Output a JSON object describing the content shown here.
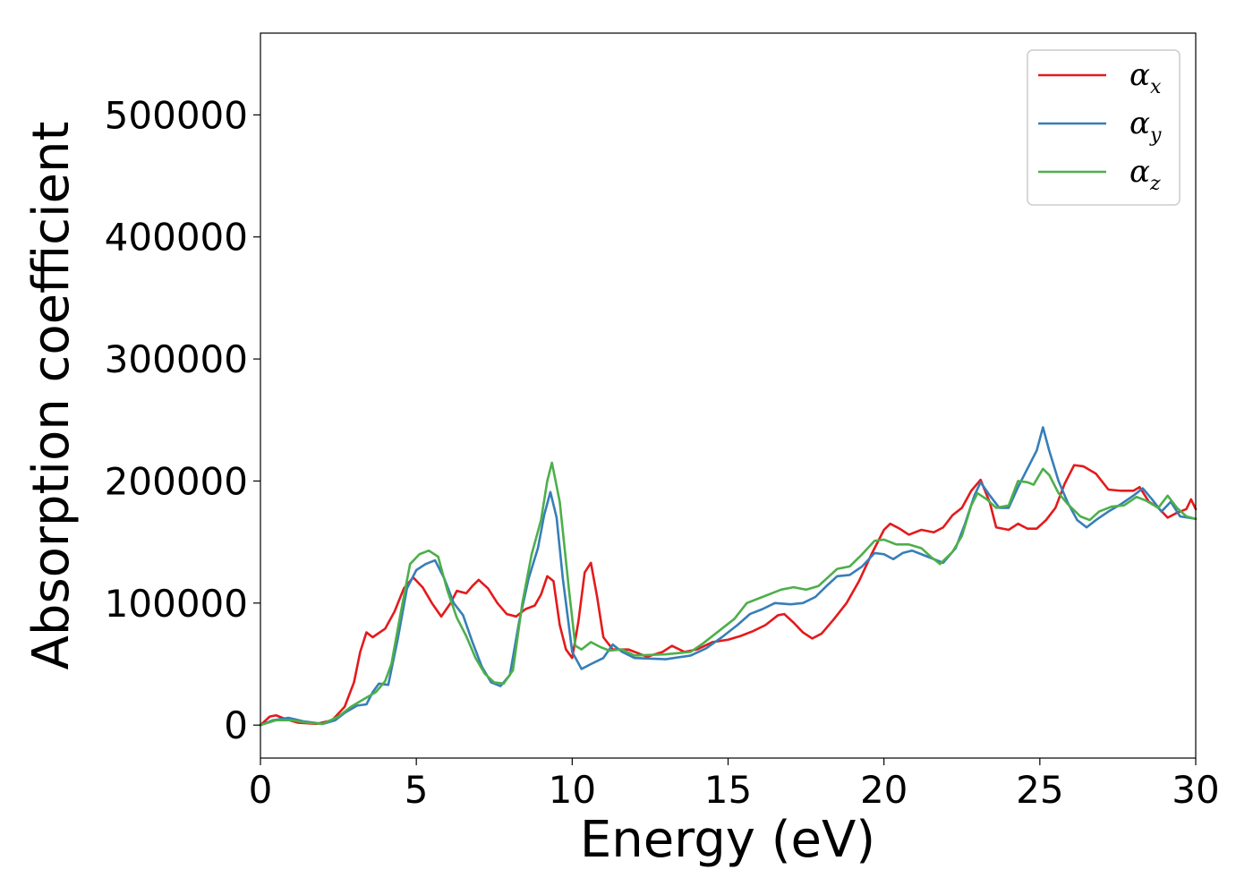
{
  "chart_data": {
    "type": "line",
    "xlabel": "Energy (eV)",
    "ylabel": "Absorption coefficient",
    "xlim": [
      0,
      30
    ],
    "ylim": [
      -27000,
      567000
    ],
    "x_ticks": [
      "0",
      "5",
      "10",
      "15",
      "20",
      "25",
      "30"
    ],
    "y_ticks": [
      "0",
      "100000",
      "200000",
      "300000",
      "400000",
      "500000"
    ],
    "grid": false,
    "legend_position": "top-right",
    "series": [
      {
        "name": "α_x",
        "label_main": "α",
        "label_sub": "x",
        "color": "#e41a1c",
        "points": [
          [
            0,
            0
          ],
          [
            0.3,
            7000
          ],
          [
            0.5,
            8000
          ],
          [
            0.8,
            5000
          ],
          [
            1.2,
            2000
          ],
          [
            1.8,
            1000
          ],
          [
            2.3,
            4000
          ],
          [
            2.7,
            15000
          ],
          [
            3.0,
            35000
          ],
          [
            3.2,
            60000
          ],
          [
            3.4,
            76000
          ],
          [
            3.6,
            72000
          ],
          [
            4.0,
            79000
          ],
          [
            4.3,
            93000
          ],
          [
            4.6,
            112000
          ],
          [
            4.9,
            121000
          ],
          [
            5.2,
            113000
          ],
          [
            5.5,
            100000
          ],
          [
            5.8,
            89000
          ],
          [
            6.1,
            100000
          ],
          [
            6.3,
            110000
          ],
          [
            6.6,
            108000
          ],
          [
            6.8,
            114000
          ],
          [
            7.0,
            119000
          ],
          [
            7.3,
            112000
          ],
          [
            7.6,
            100000
          ],
          [
            7.9,
            91000
          ],
          [
            8.2,
            89000
          ],
          [
            8.5,
            95000
          ],
          [
            8.8,
            98000
          ],
          [
            9.0,
            107000
          ],
          [
            9.2,
            122000
          ],
          [
            9.4,
            118000
          ],
          [
            9.6,
            82000
          ],
          [
            9.8,
            62000
          ],
          [
            10.0,
            55000
          ],
          [
            10.2,
            85000
          ],
          [
            10.4,
            125000
          ],
          [
            10.6,
            133000
          ],
          [
            10.8,
            105000
          ],
          [
            11.0,
            72000
          ],
          [
            11.3,
            62000
          ],
          [
            11.8,
            62000
          ],
          [
            12.4,
            56000
          ],
          [
            12.9,
            60000
          ],
          [
            13.2,
            65000
          ],
          [
            13.6,
            60000
          ],
          [
            14.0,
            62000
          ],
          [
            14.5,
            68000
          ],
          [
            15.0,
            70000
          ],
          [
            15.4,
            73000
          ],
          [
            15.8,
            77000
          ],
          [
            16.2,
            82000
          ],
          [
            16.6,
            90000
          ],
          [
            16.8,
            91000
          ],
          [
            17.1,
            84000
          ],
          [
            17.4,
            76000
          ],
          [
            17.7,
            71000
          ],
          [
            18.0,
            75000
          ],
          [
            18.4,
            87000
          ],
          [
            18.8,
            100000
          ],
          [
            19.2,
            118000
          ],
          [
            19.6,
            140000
          ],
          [
            20.0,
            160000
          ],
          [
            20.2,
            165000
          ],
          [
            20.5,
            161000
          ],
          [
            20.8,
            156000
          ],
          [
            21.2,
            160000
          ],
          [
            21.6,
            158000
          ],
          [
            21.9,
            162000
          ],
          [
            22.2,
            172000
          ],
          [
            22.5,
            178000
          ],
          [
            22.8,
            192000
          ],
          [
            23.1,
            201000
          ],
          [
            23.4,
            182000
          ],
          [
            23.6,
            162000
          ],
          [
            24.0,
            160000
          ],
          [
            24.3,
            165000
          ],
          [
            24.6,
            161000
          ],
          [
            24.9,
            161000
          ],
          [
            25.2,
            168000
          ],
          [
            25.5,
            178000
          ],
          [
            25.8,
            198000
          ],
          [
            26.1,
            213000
          ],
          [
            26.4,
            212000
          ],
          [
            26.8,
            206000
          ],
          [
            27.2,
            193000
          ],
          [
            27.6,
            192000
          ],
          [
            28.0,
            192000
          ],
          [
            28.2,
            195000
          ],
          [
            28.5,
            183000
          ],
          [
            28.8,
            178000
          ],
          [
            29.1,
            170000
          ],
          [
            29.4,
            174000
          ],
          [
            29.7,
            177000
          ],
          [
            29.85,
            185000
          ],
          [
            30.0,
            177000
          ]
        ]
      },
      {
        "name": "α_y",
        "label_main": "α",
        "label_sub": "y",
        "color": "#377eb8",
        "points": [
          [
            0,
            0
          ],
          [
            0.4,
            4000
          ],
          [
            0.9,
            6000
          ],
          [
            1.4,
            3000
          ],
          [
            2.0,
            1000
          ],
          [
            2.4,
            4000
          ],
          [
            2.7,
            10000
          ],
          [
            3.1,
            16000
          ],
          [
            3.4,
            17000
          ],
          [
            3.6,
            27000
          ],
          [
            3.8,
            34000
          ],
          [
            4.1,
            33000
          ],
          [
            4.4,
            70000
          ],
          [
            4.7,
            112000
          ],
          [
            5.0,
            127000
          ],
          [
            5.3,
            132000
          ],
          [
            5.6,
            135000
          ],
          [
            5.9,
            120000
          ],
          [
            6.2,
            100000
          ],
          [
            6.5,
            90000
          ],
          [
            6.8,
            68000
          ],
          [
            7.1,
            48000
          ],
          [
            7.4,
            35000
          ],
          [
            7.7,
            32000
          ],
          [
            8.0,
            41000
          ],
          [
            8.3,
            85000
          ],
          [
            8.6,
            120000
          ],
          [
            8.9,
            145000
          ],
          [
            9.1,
            172000
          ],
          [
            9.3,
            191000
          ],
          [
            9.5,
            170000
          ],
          [
            9.7,
            120000
          ],
          [
            10.0,
            60000
          ],
          [
            10.3,
            46000
          ],
          [
            10.6,
            50000
          ],
          [
            11.0,
            55000
          ],
          [
            11.3,
            66000
          ],
          [
            11.6,
            60000
          ],
          [
            12.0,
            55000
          ],
          [
            13.0,
            54000
          ],
          [
            13.8,
            57000
          ],
          [
            14.3,
            63000
          ],
          [
            14.8,
            72000
          ],
          [
            15.3,
            82000
          ],
          [
            15.7,
            91000
          ],
          [
            16.1,
            95000
          ],
          [
            16.5,
            100000
          ],
          [
            17.0,
            99000
          ],
          [
            17.4,
            100000
          ],
          [
            17.8,
            105000
          ],
          [
            18.2,
            115000
          ],
          [
            18.5,
            122000
          ],
          [
            18.9,
            123000
          ],
          [
            19.3,
            130000
          ],
          [
            19.7,
            141000
          ],
          [
            20.0,
            140000
          ],
          [
            20.3,
            136000
          ],
          [
            20.6,
            141000
          ],
          [
            20.9,
            143000
          ],
          [
            21.2,
            140000
          ],
          [
            21.6,
            136000
          ],
          [
            21.9,
            133000
          ],
          [
            22.3,
            145000
          ],
          [
            22.6,
            165000
          ],
          [
            22.9,
            188000
          ],
          [
            23.1,
            199000
          ],
          [
            23.4,
            188000
          ],
          [
            23.7,
            178000
          ],
          [
            24.0,
            178000
          ],
          [
            24.3,
            195000
          ],
          [
            24.6,
            210000
          ],
          [
            24.9,
            225000
          ],
          [
            25.1,
            244000
          ],
          [
            25.3,
            225000
          ],
          [
            25.6,
            200000
          ],
          [
            25.9,
            182000
          ],
          [
            26.2,
            168000
          ],
          [
            26.5,
            162000
          ],
          [
            26.8,
            168000
          ],
          [
            27.2,
            175000
          ],
          [
            27.6,
            181000
          ],
          [
            28.0,
            188000
          ],
          [
            28.3,
            194000
          ],
          [
            28.6,
            185000
          ],
          [
            28.9,
            175000
          ],
          [
            29.2,
            183000
          ],
          [
            29.5,
            171000
          ],
          [
            30.0,
            169000
          ]
        ]
      },
      {
        "name": "α_z",
        "label_main": "α",
        "label_sub": "z",
        "color": "#4daf4a",
        "points": [
          [
            0,
            0
          ],
          [
            0.5,
            4000
          ],
          [
            1.0,
            4000
          ],
          [
            1.5,
            2000
          ],
          [
            2.0,
            1000
          ],
          [
            2.5,
            7000
          ],
          [
            2.9,
            15000
          ],
          [
            3.3,
            21000
          ],
          [
            3.7,
            27000
          ],
          [
            4.0,
            36000
          ],
          [
            4.2,
            50000
          ],
          [
            4.5,
            92000
          ],
          [
            4.8,
            132000
          ],
          [
            5.1,
            140000
          ],
          [
            5.4,
            143000
          ],
          [
            5.7,
            138000
          ],
          [
            6.0,
            110000
          ],
          [
            6.3,
            88000
          ],
          [
            6.6,
            73000
          ],
          [
            6.9,
            55000
          ],
          [
            7.2,
            42000
          ],
          [
            7.5,
            35000
          ],
          [
            7.8,
            34000
          ],
          [
            8.1,
            45000
          ],
          [
            8.4,
            100000
          ],
          [
            8.7,
            140000
          ],
          [
            9.0,
            168000
          ],
          [
            9.2,
            200000
          ],
          [
            9.35,
            215000
          ],
          [
            9.6,
            183000
          ],
          [
            9.9,
            110000
          ],
          [
            10.1,
            65000
          ],
          [
            10.3,
            62000
          ],
          [
            10.6,
            68000
          ],
          [
            10.9,
            64000
          ],
          [
            11.2,
            61000
          ],
          [
            11.6,
            62000
          ],
          [
            12.0,
            57000
          ],
          [
            13.0,
            58000
          ],
          [
            13.8,
            60000
          ],
          [
            14.2,
            67000
          ],
          [
            14.7,
            77000
          ],
          [
            15.2,
            87000
          ],
          [
            15.6,
            100000
          ],
          [
            16.0,
            104000
          ],
          [
            16.4,
            108000
          ],
          [
            16.7,
            111000
          ],
          [
            17.1,
            113000
          ],
          [
            17.5,
            111000
          ],
          [
            17.9,
            114000
          ],
          [
            18.2,
            121000
          ],
          [
            18.5,
            128000
          ],
          [
            18.9,
            130000
          ],
          [
            19.3,
            140000
          ],
          [
            19.7,
            151000
          ],
          [
            20.0,
            152000
          ],
          [
            20.4,
            148000
          ],
          [
            20.8,
            148000
          ],
          [
            21.2,
            145000
          ],
          [
            21.5,
            138000
          ],
          [
            21.8,
            132000
          ],
          [
            22.2,
            142000
          ],
          [
            22.5,
            155000
          ],
          [
            22.8,
            180000
          ],
          [
            23.0,
            190000
          ],
          [
            23.3,
            185000
          ],
          [
            23.6,
            178000
          ],
          [
            24.0,
            180000
          ],
          [
            24.3,
            200000
          ],
          [
            24.6,
            199000
          ],
          [
            24.8,
            197000
          ],
          [
            25.1,
            210000
          ],
          [
            25.3,
            205000
          ],
          [
            25.6,
            190000
          ],
          [
            25.9,
            181000
          ],
          [
            26.3,
            171000
          ],
          [
            26.6,
            168000
          ],
          [
            26.9,
            175000
          ],
          [
            27.3,
            179000
          ],
          [
            27.7,
            180000
          ],
          [
            28.1,
            187000
          ],
          [
            28.4,
            184000
          ],
          [
            28.8,
            178000
          ],
          [
            29.1,
            188000
          ],
          [
            29.4,
            178000
          ],
          [
            29.7,
            171000
          ],
          [
            30.0,
            169000
          ]
        ]
      }
    ]
  }
}
